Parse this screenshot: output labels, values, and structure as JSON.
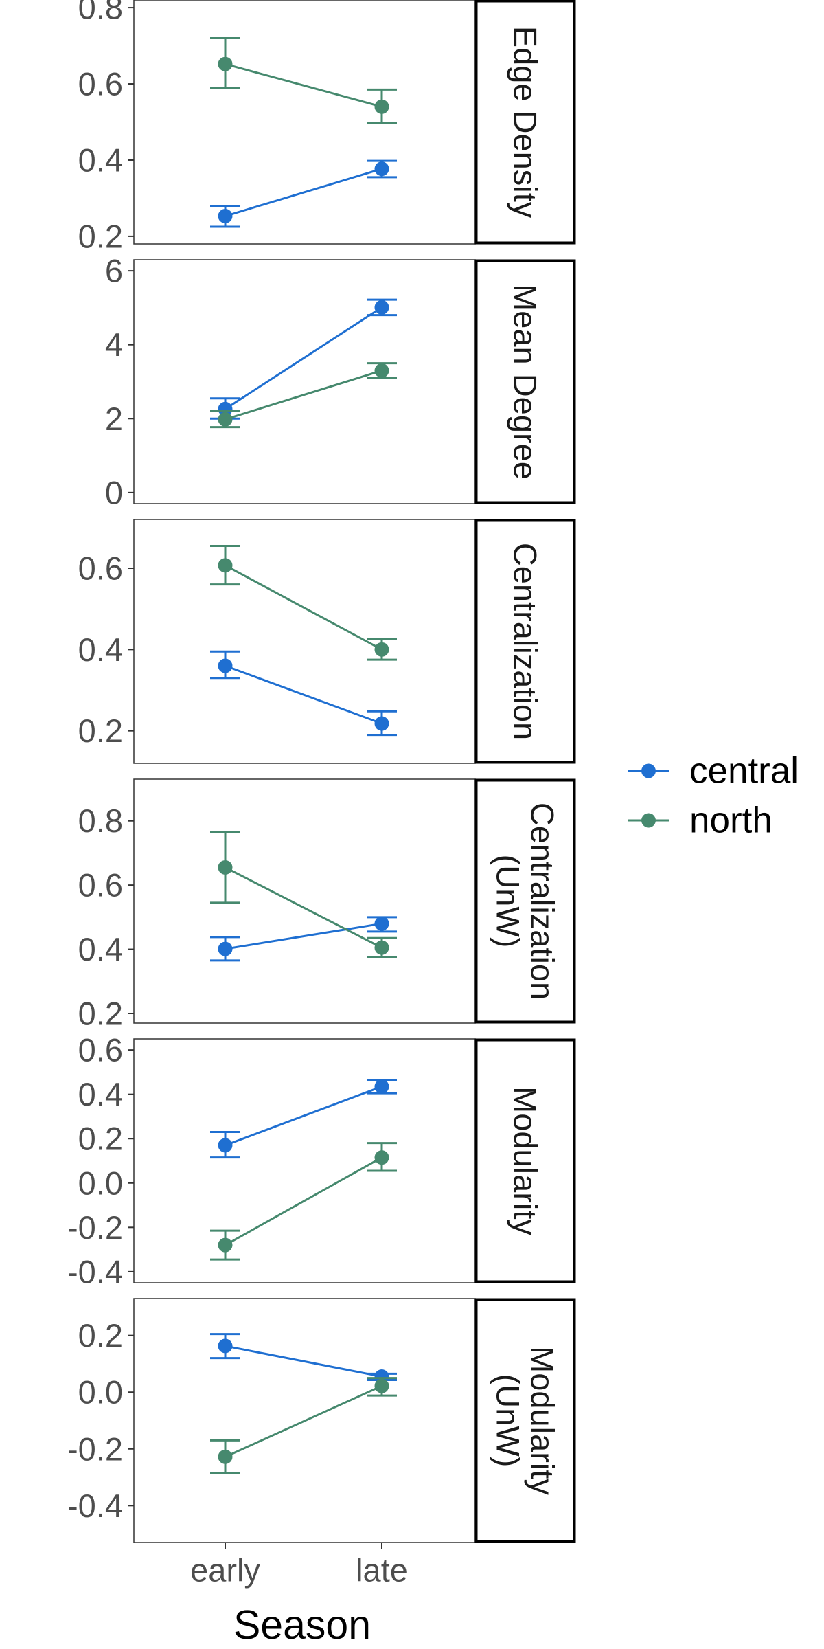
{
  "chart_data": {
    "type": "line",
    "x_title": "Season",
    "x_categories": [
      "early",
      "late"
    ],
    "legend": {
      "position": "right",
      "items": [
        {
          "name": "central",
          "color": "#1f6fd1"
        },
        {
          "name": "north",
          "color": "#46896e"
        }
      ]
    },
    "facets": [
      {
        "label_lines": [
          "Edge Density"
        ],
        "ylim": [
          0.18,
          0.82
        ],
        "yticks": [
          0.2,
          0.4,
          0.6,
          0.8
        ],
        "ytick_labels": [
          "0.2",
          "0.4",
          "0.6",
          "0.8"
        ],
        "series": [
          {
            "name": "central",
            "values": [
              0.253,
              0.377
            ],
            "lower": [
              0.225,
              0.355
            ],
            "upper": [
              0.28,
              0.398
            ]
          },
          {
            "name": "north",
            "values": [
              0.652,
              0.54
            ],
            "lower": [
              0.59,
              0.497
            ],
            "upper": [
              0.72,
              0.585
            ]
          }
        ]
      },
      {
        "label_lines": [
          "Mean Degree"
        ],
        "ylim": [
          -0.3,
          6.3
        ],
        "yticks": [
          0,
          2,
          4,
          6
        ],
        "ytick_labels": [
          "0",
          "2",
          "4",
          "6"
        ],
        "series": [
          {
            "name": "central",
            "values": [
              2.26,
              5.01
            ],
            "lower": [
              2.0,
              4.8
            ],
            "upper": [
              2.55,
              5.22
            ]
          },
          {
            "name": "north",
            "values": [
              1.98,
              3.3
            ],
            "lower": [
              1.77,
              3.1
            ],
            "upper": [
              2.2,
              3.5
            ]
          }
        ]
      },
      {
        "label_lines": [
          "Centralization"
        ],
        "ylim": [
          0.12,
          0.72
        ],
        "yticks": [
          0.2,
          0.4,
          0.6
        ],
        "ytick_labels": [
          "0.2",
          "0.4",
          "0.6"
        ],
        "series": [
          {
            "name": "central",
            "values": [
              0.36,
              0.218
            ],
            "lower": [
              0.33,
              0.19
            ],
            "upper": [
              0.395,
              0.248
            ]
          },
          {
            "name": "north",
            "values": [
              0.607,
              0.4
            ],
            "lower": [
              0.56,
              0.375
            ],
            "upper": [
              0.655,
              0.425
            ]
          }
        ]
      },
      {
        "label_lines": [
          "Centralization",
          "(UnW)"
        ],
        "ylim": [
          0.17,
          0.93
        ],
        "yticks": [
          0.2,
          0.4,
          0.6,
          0.8
        ],
        "ytick_labels": [
          "0.2",
          "0.4",
          "0.6",
          "0.8"
        ],
        "series": [
          {
            "name": "central",
            "values": [
              0.401,
              0.48
            ],
            "lower": [
              0.365,
              0.455
            ],
            "upper": [
              0.438,
              0.5
            ]
          },
          {
            "name": "north",
            "values": [
              0.655,
              0.405
            ],
            "lower": [
              0.545,
              0.375
            ],
            "upper": [
              0.765,
              0.435
            ]
          }
        ]
      },
      {
        "label_lines": [
          "Modularity"
        ],
        "ylim": [
          -0.45,
          0.65
        ],
        "yticks": [
          -0.4,
          -0.2,
          0.0,
          0.2,
          0.4,
          0.6
        ],
        "ytick_labels": [
          "-0.4",
          "-0.2",
          "0.0",
          "0.2",
          "0.4",
          "0.6"
        ],
        "series": [
          {
            "name": "central",
            "values": [
              0.17,
              0.435
            ],
            "lower": [
              0.115,
              0.405
            ],
            "upper": [
              0.23,
              0.465
            ]
          },
          {
            "name": "north",
            "values": [
              -0.28,
              0.115
            ],
            "lower": [
              -0.345,
              0.055
            ],
            "upper": [
              -0.215,
              0.18
            ]
          }
        ]
      },
      {
        "label_lines": [
          "Modularity",
          "(UnW)"
        ],
        "ylim": [
          -0.53,
          0.33
        ],
        "yticks": [
          -0.4,
          -0.2,
          0.0,
          0.2
        ],
        "ytick_labels": [
          "-0.4",
          "-0.2",
          "0.0",
          "0.2"
        ],
        "series": [
          {
            "name": "central",
            "values": [
              0.163,
              0.055
            ],
            "lower": [
              0.12,
              0.043
            ],
            "upper": [
              0.205,
              0.065
            ]
          },
          {
            "name": "north",
            "values": [
              -0.228,
              0.022
            ],
            "lower": [
              -0.285,
              -0.012
            ],
            "upper": [
              -0.17,
              0.05
            ]
          }
        ]
      }
    ]
  }
}
